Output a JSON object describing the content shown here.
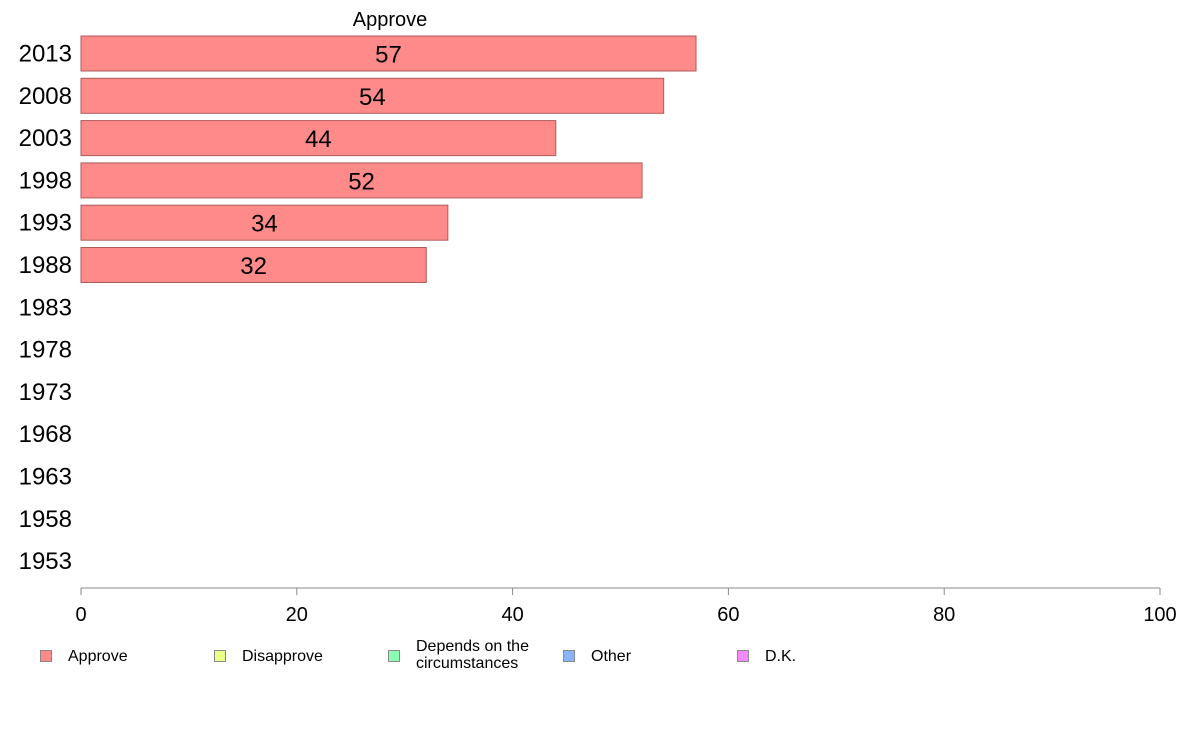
{
  "chart_data": {
    "type": "bar",
    "title": "Approve",
    "categories": [
      "2013",
      "2008",
      "2003",
      "1998",
      "1993",
      "1988",
      "1983",
      "1978",
      "1973",
      "1968",
      "1963",
      "1958",
      "1953"
    ],
    "series": [
      {
        "name": "Approve",
        "values": [
          57,
          54,
          44,
          52,
          34,
          32,
          null,
          null,
          null,
          null,
          null,
          null,
          null
        ]
      }
    ],
    "xlim": [
      0,
      100
    ],
    "xticks": [
      0,
      20,
      40,
      60,
      80,
      100
    ],
    "orientation": "horizontal",
    "grid": false,
    "legend_position": "bottom"
  },
  "legend": [
    {
      "label": "Approve",
      "color": "#ff8a8a"
    },
    {
      "label": "Disapprove",
      "color": "#e8ff8a"
    },
    {
      "label": "Depends on the\ncircumstances",
      "color": "#8affb0"
    },
    {
      "label": "Other",
      "color": "#8ab4ff"
    },
    {
      "label": "D.K.",
      "color": "#f08aff"
    }
  ],
  "colors": {
    "bar": "#ff8a8a",
    "bar_stroke": "#b05a5a",
    "axis": "#888888"
  }
}
